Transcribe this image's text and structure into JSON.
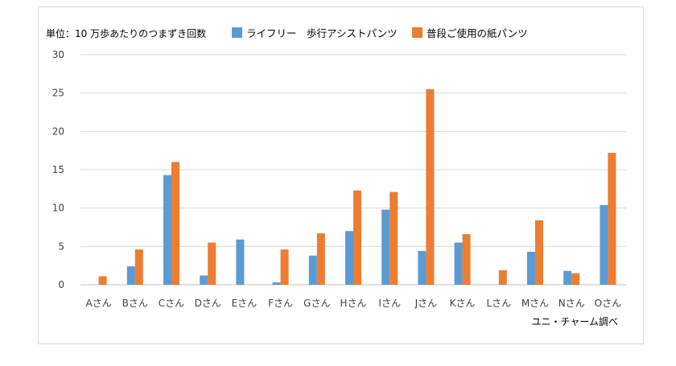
{
  "chart_data": {
    "type": "bar",
    "unit_label": "単位：10 万歩あたりのつまずき回数",
    "source": "ユニ・チャーム調べ",
    "categories": [
      "Aさん",
      "Bさん",
      "Cさん",
      "Dさん",
      "Eさん",
      "Fさん",
      "Gさん",
      "Hさん",
      "Iさん",
      "Jさん",
      "Kさん",
      "Lさん",
      "Mさん",
      "Nさん",
      "Oさん"
    ],
    "series": [
      {
        "name": "ライフリー　歩行アシストパンツ",
        "color": "#5b9bd5",
        "values": [
          0,
          2.4,
          14.3,
          1.2,
          5.9,
          0.3,
          3.8,
          7.0,
          9.8,
          4.4,
          5.5,
          0,
          4.3,
          1.8,
          10.4
        ]
      },
      {
        "name": "普段ご使用の紙パンツ",
        "color": "#ed7d31",
        "values": [
          1.1,
          4.6,
          16.0,
          5.5,
          0,
          4.6,
          6.7,
          12.3,
          12.1,
          25.5,
          6.6,
          1.9,
          8.4,
          1.5,
          17.2
        ]
      }
    ],
    "ylim": [
      0,
      30
    ],
    "yticks": [
      0,
      5,
      10,
      15,
      20,
      25,
      30
    ],
    "grid": true,
    "legend_position": "top"
  }
}
